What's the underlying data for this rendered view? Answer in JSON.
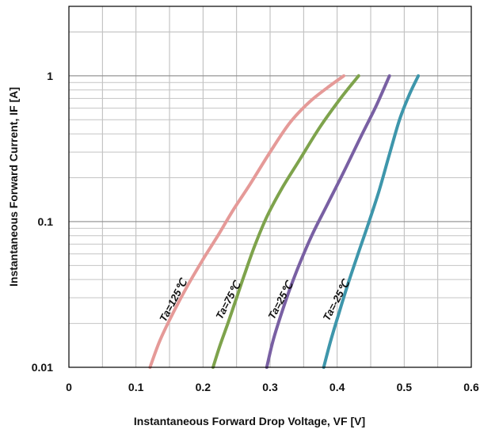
{
  "chart_data": {
    "type": "line",
    "x_scale": "linear",
    "y_scale": "log",
    "grid": true,
    "xlim": [
      0,
      0.6
    ],
    "ylim": [
      0.01,
      3
    ],
    "x_ticks": [
      0,
      0.1,
      0.2,
      0.3,
      0.4,
      0.5,
      0.6
    ],
    "x_tick_labels": [
      "0",
      "0.1",
      "0.2",
      "0.3",
      "0.4",
      "0.5",
      "0.6"
    ],
    "y_ticks": [
      0.01,
      0.1,
      1
    ],
    "y_tick_labels": [
      "0.01",
      "0.1",
      "1"
    ],
    "xlabel": "Instantaneous Forward Drop Voltage, VF [V]",
    "ylabel": "Instantaneous Forward Current, IF [A]",
    "series": [
      {
        "name": "Ta=125℃",
        "color": "#e59a98",
        "x": [
          0.121,
          0.135,
          0.152,
          0.175,
          0.2,
          0.222,
          0.245,
          0.27,
          0.3,
          0.33,
          0.36,
          0.39,
          0.41
        ],
        "y": [
          0.01,
          0.015,
          0.022,
          0.035,
          0.055,
          0.08,
          0.12,
          0.18,
          0.3,
          0.48,
          0.67,
          0.86,
          1.0
        ]
      },
      {
        "name": "Ta=75℃",
        "color": "#7ea34c",
        "x": [
          0.215,
          0.225,
          0.237,
          0.25,
          0.263,
          0.278,
          0.296,
          0.318,
          0.345,
          0.375,
          0.405,
          0.432
        ],
        "y": [
          0.01,
          0.014,
          0.02,
          0.03,
          0.045,
          0.07,
          0.11,
          0.17,
          0.27,
          0.45,
          0.7,
          1.0
        ]
      },
      {
        "name": "Ta=25℃",
        "color": "#7960a3",
        "x": [
          0.295,
          0.304,
          0.315,
          0.328,
          0.343,
          0.362,
          0.385,
          0.41,
          0.435,
          0.458,
          0.478
        ],
        "y": [
          0.01,
          0.015,
          0.022,
          0.033,
          0.05,
          0.08,
          0.13,
          0.22,
          0.38,
          0.62,
          1.0
        ]
      },
      {
        "name": "Ta=-25℃",
        "color": "#3e96ab",
        "x": [
          0.38,
          0.39,
          0.402,
          0.415,
          0.43,
          0.446,
          0.462,
          0.478,
          0.493,
          0.508,
          0.521
        ],
        "y": [
          0.01,
          0.015,
          0.023,
          0.036,
          0.058,
          0.095,
          0.16,
          0.29,
          0.5,
          0.75,
          1.0
        ]
      }
    ],
    "annotations": [
      "Ta=125℃",
      "Ta=75℃",
      "Ta=25℃",
      "Ta=-25℃"
    ]
  }
}
